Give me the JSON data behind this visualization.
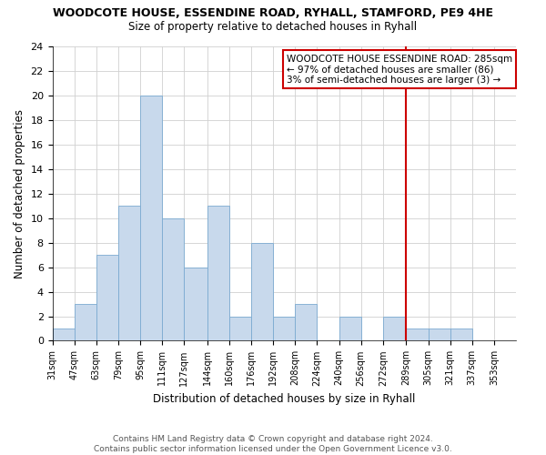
{
  "title": "WOODCOTE HOUSE, ESSENDINE ROAD, RYHALL, STAMFORD, PE9 4HE",
  "subtitle": "Size of property relative to detached houses in Ryhall",
  "xlabel": "Distribution of detached houses by size in Ryhall",
  "ylabel": "Number of detached properties",
  "bar_color": "#c8d9ec",
  "bar_edge_color": "#7baad1",
  "bin_labels": [
    "31sqm",
    "47sqm",
    "63sqm",
    "79sqm",
    "95sqm",
    "111sqm",
    "127sqm",
    "144sqm",
    "160sqm",
    "176sqm",
    "192sqm",
    "208sqm",
    "224sqm",
    "240sqm",
    "256sqm",
    "272sqm",
    "289sqm",
    "305sqm",
    "321sqm",
    "337sqm",
    "353sqm"
  ],
  "bar_heights": [
    1,
    3,
    7,
    11,
    20,
    10,
    6,
    11,
    2,
    8,
    2,
    3,
    0,
    2,
    0,
    2,
    1,
    1,
    1,
    0
  ],
  "ylim": [
    0,
    24
  ],
  "yticks": [
    0,
    2,
    4,
    6,
    8,
    10,
    12,
    14,
    16,
    18,
    20,
    22,
    24
  ],
  "vline_x_idx": 16,
  "vline_color": "#cc0000",
  "annotation_title": "WOODCOTE HOUSE ESSENDINE ROAD: 285sqm",
  "annotation_line1": "← 97% of detached houses are smaller (86)",
  "annotation_line2": "3% of semi-detached houses are larger (3) →",
  "annotation_box_color": "#ffffff",
  "annotation_box_edge": "#cc0000",
  "footer1": "Contains HM Land Registry data © Crown copyright and database right 2024.",
  "footer2": "Contains public sector information licensed under the Open Government Licence v3.0.",
  "bin_edges": [
    31,
    47,
    63,
    79,
    95,
    111,
    127,
    144,
    160,
    176,
    192,
    208,
    224,
    240,
    256,
    272,
    289,
    305,
    321,
    337,
    353
  ],
  "grid_color": "#d0d0d0"
}
